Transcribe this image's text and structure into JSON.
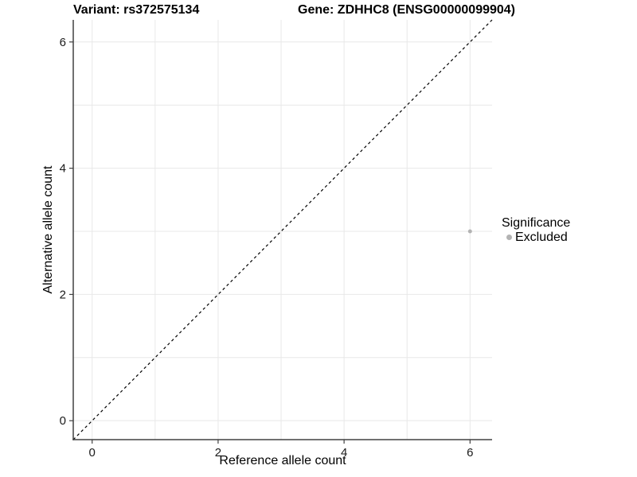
{
  "figure": {
    "background": "#ffffff"
  },
  "chart_data": {
    "type": "scatter",
    "title_left": "Variant: rs372575134",
    "title_right": "Gene: ZDHHC8 (ENSG00000099904)",
    "xlabel": "Reference allele count",
    "ylabel": "Alternative allele count",
    "xlim": [
      -0.3,
      6.35
    ],
    "ylim": [
      -0.3,
      6.35
    ],
    "x_ticks": [
      0,
      2,
      4,
      6
    ],
    "y_ticks": [
      0,
      2,
      4,
      6
    ],
    "x_grid_minor": [
      1,
      3,
      5
    ],
    "y_grid_minor": [
      1,
      3,
      5
    ],
    "grid": true,
    "reference_line": {
      "equation": "y = x",
      "style": "dashed",
      "color": "#000000"
    },
    "series": [
      {
        "name": "Excluded",
        "color": "#b3b3b3",
        "point_radius": 2.5,
        "points": [
          [
            6,
            3
          ]
        ]
      }
    ],
    "legend": {
      "position": "right",
      "title": "Significance",
      "entries": [
        {
          "label": "Excluded",
          "color": "#b3b3b3"
        }
      ]
    },
    "colors": {
      "grid": "#e8e8e8",
      "axis_line": "#404040",
      "tick_text": "#1a1a1a"
    }
  }
}
